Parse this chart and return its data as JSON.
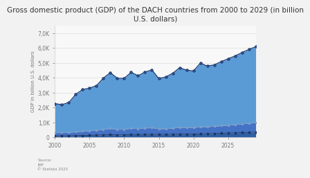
{
  "title": "Gross domestic product (GDP) of the DACH countries from 2000 to 2029 (in billion\nU.S. dollars)",
  "ylabel": "GDP in billion U.S. dollars",
  "years": [
    2000,
    2001,
    2002,
    2003,
    2004,
    2005,
    2006,
    2007,
    2008,
    2009,
    2010,
    2011,
    2012,
    2013,
    2014,
    2015,
    2016,
    2017,
    2018,
    2019,
    2020,
    2021,
    2022,
    2023,
    2024,
    2025,
    2026,
    2027,
    2028,
    2029
  ],
  "germany": [
    1950,
    1882,
    2016,
    2510,
    2800,
    2861,
    3000,
    3440,
    3750,
    3420,
    3417,
    3757,
    3543,
    3752,
    3882,
    3374,
    3467,
    3683,
    3996,
    3861,
    3806,
    4260,
    4070,
    4120,
    4300,
    4450,
    4600,
    4780,
    4950,
    5100
  ],
  "austria": [
    210,
    212,
    218,
    258,
    282,
    310,
    330,
    380,
    415,
    382,
    379,
    420,
    407,
    430,
    440,
    374,
    390,
    416,
    455,
    446,
    432,
    480,
    470,
    490,
    510,
    535,
    560,
    590,
    615,
    640
  ],
  "switzerland": [
    95,
    98,
    100,
    115,
    122,
    130,
    140,
    155,
    175,
    155,
    160,
    185,
    180,
    195,
    198,
    195,
    190,
    195,
    210,
    205,
    210,
    235,
    240,
    250,
    265,
    280,
    295,
    310,
    325,
    340
  ],
  "fill_top_color": "#5b9bd5",
  "fill_mid_color": "#4472c4",
  "fill_bot_color": "#2e5fa3",
  "line_top_color": "#1f3864",
  "line_mid_color": "#2d5496",
  "line_bot_color": "#1f3864",
  "marker_top_color": "#4472c4",
  "bg_color": "#f2f2f2",
  "plot_bg_color": "#f8f8f8",
  "ytick_labels": [
    "0",
    "1,0K",
    "2,0K",
    "3,0K",
    "4,0K",
    "5,0K",
    "6,0K",
    "7,0K"
  ],
  "yticks": [
    0,
    1000,
    2000,
    3000,
    4000,
    5000,
    6000,
    7000
  ],
  "ylim": [
    0,
    7500
  ],
  "source_text": "Source:\nIMF\n© Statista 2025",
  "title_fontsize": 7.5,
  "axis_label_fontsize": 5,
  "tick_fontsize": 5.5
}
